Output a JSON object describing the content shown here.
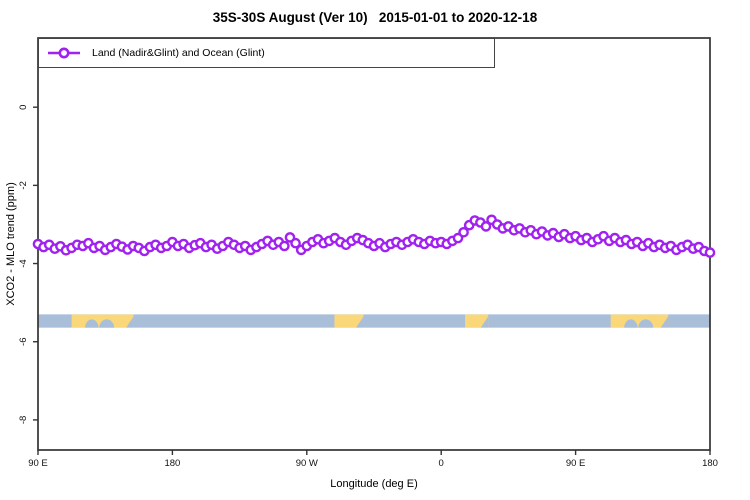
{
  "chart_data": {
    "type": "line",
    "title": "35S-30S August (Ver 10)   2015-01-01 to 2020-12-18",
    "xlabel": "Longitude (deg E)",
    "ylabel": "XCO2 - MLO trend (ppm)",
    "legend": [
      "Land (Nadir&Glint) and Ocean (Glint)"
    ],
    "legend_position": "top-left",
    "grid": false,
    "x_axis": {
      "lim": [
        90,
        540
      ],
      "note": "longitude axis wraps: 90E -> 180 -> 90W -> 0 -> 90E -> 180",
      "ticks": [
        {
          "deg": 90,
          "label": "90 E"
        },
        {
          "deg": 180,
          "label": "180"
        },
        {
          "deg": 270,
          "label": "90 W"
        },
        {
          "deg": 360,
          "label": "0"
        },
        {
          "deg": 450,
          "label": "90 E"
        },
        {
          "deg": 540,
          "label": "180"
        }
      ]
    },
    "y_axis": {
      "lim": [
        -8.77,
        1.77
      ],
      "ticks": [
        {
          "v": 0,
          "label": "0"
        },
        {
          "v": -2,
          "label": "-2"
        },
        {
          "v": -4,
          "label": "-4"
        },
        {
          "v": -6,
          "label": "-6"
        },
        {
          "v": -8,
          "label": "-8"
        }
      ]
    },
    "series": [
      {
        "name": "Land (Nadir&Glint) and Ocean (Glint)",
        "marker": "open-circle",
        "x_start_deg": 90,
        "x_step_deg": 3.75,
        "values_ppm": [
          -3.5,
          -3.58,
          -3.52,
          -3.62,
          -3.56,
          -3.66,
          -3.6,
          -3.52,
          -3.55,
          -3.48,
          -3.6,
          -3.55,
          -3.65,
          -3.58,
          -3.5,
          -3.57,
          -3.64,
          -3.55,
          -3.6,
          -3.68,
          -3.58,
          -3.52,
          -3.6,
          -3.55,
          -3.45,
          -3.55,
          -3.5,
          -3.6,
          -3.53,
          -3.48,
          -3.58,
          -3.52,
          -3.62,
          -3.55,
          -3.45,
          -3.52,
          -3.6,
          -3.55,
          -3.65,
          -3.58,
          -3.5,
          -3.42,
          -3.52,
          -3.45,
          -3.55,
          -3.33,
          -3.48,
          -3.65,
          -3.55,
          -3.45,
          -3.38,
          -3.48,
          -3.42,
          -3.35,
          -3.45,
          -3.52,
          -3.42,
          -3.35,
          -3.4,
          -3.48,
          -3.55,
          -3.48,
          -3.58,
          -3.5,
          -3.45,
          -3.52,
          -3.45,
          -3.38,
          -3.45,
          -3.5,
          -3.42,
          -3.48,
          -3.45,
          -3.5,
          -3.42,
          -3.35,
          -3.2,
          -3.02,
          -2.9,
          -2.95,
          -3.05,
          -2.88,
          -3.0,
          -3.1,
          -3.05,
          -3.15,
          -3.1,
          -3.2,
          -3.15,
          -3.25,
          -3.18,
          -3.28,
          -3.22,
          -3.32,
          -3.25,
          -3.35,
          -3.3,
          -3.4,
          -3.35,
          -3.45,
          -3.38,
          -3.3,
          -3.42,
          -3.35,
          -3.45,
          -3.4,
          -3.5,
          -3.45,
          -3.55,
          -3.48,
          -3.58,
          -3.52,
          -3.6,
          -3.55,
          -3.65,
          -3.58,
          -3.52,
          -3.62,
          -3.58,
          -3.68,
          -3.72
        ]
      }
    ],
    "land_ocean_band": {
      "description": "land/ocean strip for latitude band 35S-30S drawn along the longitude axis",
      "top_ppm": -5.3,
      "bottom_ppm": -5.64,
      "land_segments_deg": [
        {
          "from": 112.5,
          "to": 154,
          "name": "Australia"
        },
        {
          "from": 288.5,
          "to": 308,
          "name": "South America"
        },
        {
          "from": 376,
          "to": 391.5,
          "name": "Southern Africa"
        },
        {
          "from": 473.5,
          "to": 512,
          "name": "Australia (wrap)"
        }
      ],
      "ocean_cutouts": [
        {
          "type": "bump",
          "deg": 126,
          "rx_deg": 4.5
        },
        {
          "type": "bump",
          "deg": 136,
          "rx_deg": 5.0
        },
        {
          "type": "wedge",
          "from": 149,
          "to": 154
        },
        {
          "type": "wedge",
          "from": 303,
          "to": 308
        },
        {
          "type": "wedge",
          "from": 386.5,
          "to": 391.5
        },
        {
          "type": "bump",
          "deg": 487,
          "rx_deg": 4.5
        },
        {
          "type": "bump",
          "deg": 497,
          "rx_deg": 5.0
        },
        {
          "type": "wedge",
          "from": 507,
          "to": 512
        }
      ]
    },
    "colors": {
      "series": "#A021F0",
      "marker_fill": "#ffffff",
      "ocean": "#A9BED9",
      "land": "#FAD87A",
      "frame": "#333333",
      "tick_text": "#111111"
    }
  }
}
